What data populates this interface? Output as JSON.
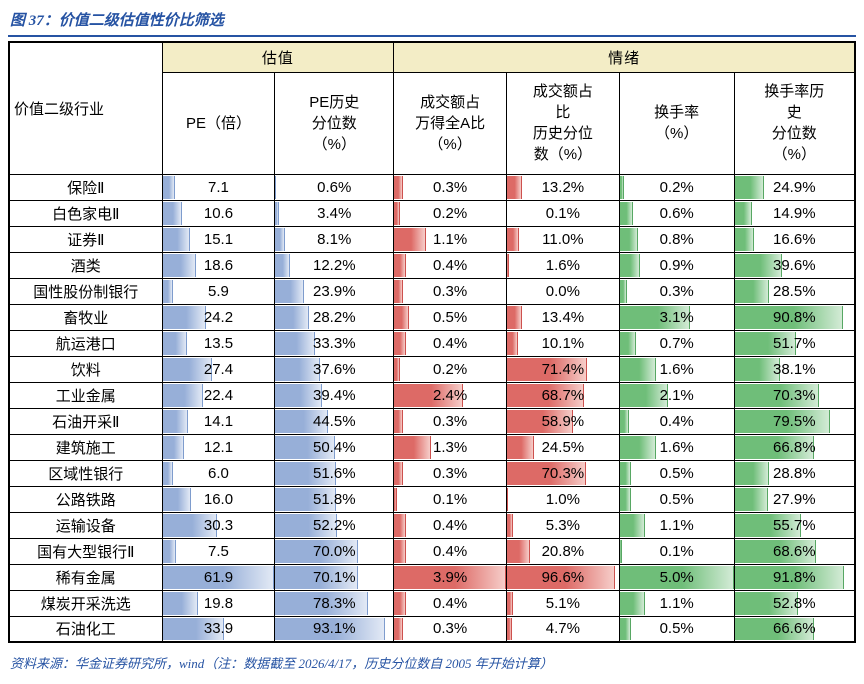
{
  "figure": {
    "title": "图 37：价值二级估值性价比筛选",
    "source_note": "资料来源：华金证券研究所，wind（注：数据截至 2026/4/17，历史分位数自 2005 年开始计算）"
  },
  "colors": {
    "accent_blue": "#2653a3",
    "group_header_fill": "#f3edc6",
    "bar_blue": "#97afd8",
    "bar_red": "#dd6a66",
    "bar_green": "#6fbe79",
    "border_black": "#000000"
  },
  "palette": {
    "blue": {
      "solid": "#97afd8",
      "light": "#e2e9f5",
      "border": "#7e9ccd"
    },
    "red": {
      "solid": "#dd6a66",
      "light": "#f6cdc9",
      "border": "#cd514e"
    },
    "green": {
      "solid": "#6fbe79",
      "light": "#d3ebd6",
      "border": "#57a763"
    }
  },
  "chart_data": {
    "type": "table",
    "title": "图 37：价值二级估值性价比筛选",
    "row_header": "价值二级行业",
    "group_headers": [
      {
        "label": "估值",
        "span": 2
      },
      {
        "label": "情绪",
        "span": 4
      }
    ],
    "columns": [
      {
        "label": "PE（倍）",
        "bar_color": "blue",
        "bar_max": 61.9
      },
      {
        "label": "PE历史\n分位数\n（%）",
        "bar_color": "blue",
        "bar_max": 100
      },
      {
        "label": "成交额占\n万得全A比\n（%）",
        "bar_color": "red",
        "bar_max": 3.9
      },
      {
        "label": "成交额占\n比\n历史分位\n数（%）",
        "bar_color": "red",
        "bar_max": 100
      },
      {
        "label": "换手率\n（%）",
        "bar_color": "green",
        "bar_max": 5.0
      },
      {
        "label": "换手率历\n史\n分位数\n（%）",
        "bar_color": "green",
        "bar_max": 100
      }
    ],
    "rows": [
      {
        "name": "保险Ⅱ",
        "values": [
          "7.1",
          "0.6%",
          "0.3%",
          "13.2%",
          "0.2%",
          "24.9%"
        ]
      },
      {
        "name": "白色家电Ⅱ",
        "values": [
          "10.6",
          "3.4%",
          "0.2%",
          "0.1%",
          "0.6%",
          "14.9%"
        ]
      },
      {
        "name": "证券Ⅱ",
        "values": [
          "15.1",
          "8.1%",
          "1.1%",
          "11.0%",
          "0.8%",
          "16.6%"
        ]
      },
      {
        "name": "酒类",
        "values": [
          "18.6",
          "12.2%",
          "0.4%",
          "1.6%",
          "0.9%",
          "39.6%"
        ]
      },
      {
        "name": "国性股份制银行",
        "values": [
          "5.9",
          "23.9%",
          "0.3%",
          "0.0%",
          "0.3%",
          "28.5%"
        ]
      },
      {
        "name": "畜牧业",
        "values": [
          "24.2",
          "28.2%",
          "0.5%",
          "13.4%",
          "3.1%",
          "90.8%"
        ]
      },
      {
        "name": "航运港口",
        "values": [
          "13.5",
          "33.3%",
          "0.4%",
          "10.1%",
          "0.7%",
          "51.7%"
        ]
      },
      {
        "name": "饮料",
        "values": [
          "27.4",
          "37.6%",
          "0.2%",
          "71.4%",
          "1.6%",
          "38.1%"
        ]
      },
      {
        "name": "工业金属",
        "values": [
          "22.4",
          "39.4%",
          "2.4%",
          "68.7%",
          "2.1%",
          "70.3%"
        ]
      },
      {
        "name": "石油开采Ⅱ",
        "values": [
          "14.1",
          "44.5%",
          "0.3%",
          "58.9%",
          "0.4%",
          "79.5%"
        ]
      },
      {
        "name": "建筑施工",
        "values": [
          "12.1",
          "50.4%",
          "1.3%",
          "24.5%",
          "1.6%",
          "66.8%"
        ]
      },
      {
        "name": "区域性银行",
        "values": [
          "6.0",
          "51.6%",
          "0.3%",
          "70.3%",
          "0.5%",
          "28.8%"
        ]
      },
      {
        "name": "公路铁路",
        "values": [
          "16.0",
          "51.8%",
          "0.1%",
          "1.0%",
          "0.5%",
          "27.9%"
        ]
      },
      {
        "name": "运输设备",
        "values": [
          "30.3",
          "52.2%",
          "0.4%",
          "5.3%",
          "1.1%",
          "55.7%"
        ]
      },
      {
        "name": "国有大型银行Ⅱ",
        "values": [
          "7.5",
          "70.0%",
          "0.4%",
          "20.8%",
          "0.1%",
          "68.6%"
        ]
      },
      {
        "name": "稀有金属",
        "values": [
          "61.9",
          "70.1%",
          "3.9%",
          "96.6%",
          "5.0%",
          "91.8%"
        ]
      },
      {
        "name": "煤炭开采洗选",
        "values": [
          "19.8",
          "78.3%",
          "0.4%",
          "5.1%",
          "1.1%",
          "52.8%"
        ]
      },
      {
        "name": "石油化工",
        "values": [
          "33.9",
          "93.1%",
          "0.3%",
          "4.7%",
          "0.5%",
          "66.6%"
        ]
      }
    ]
  }
}
